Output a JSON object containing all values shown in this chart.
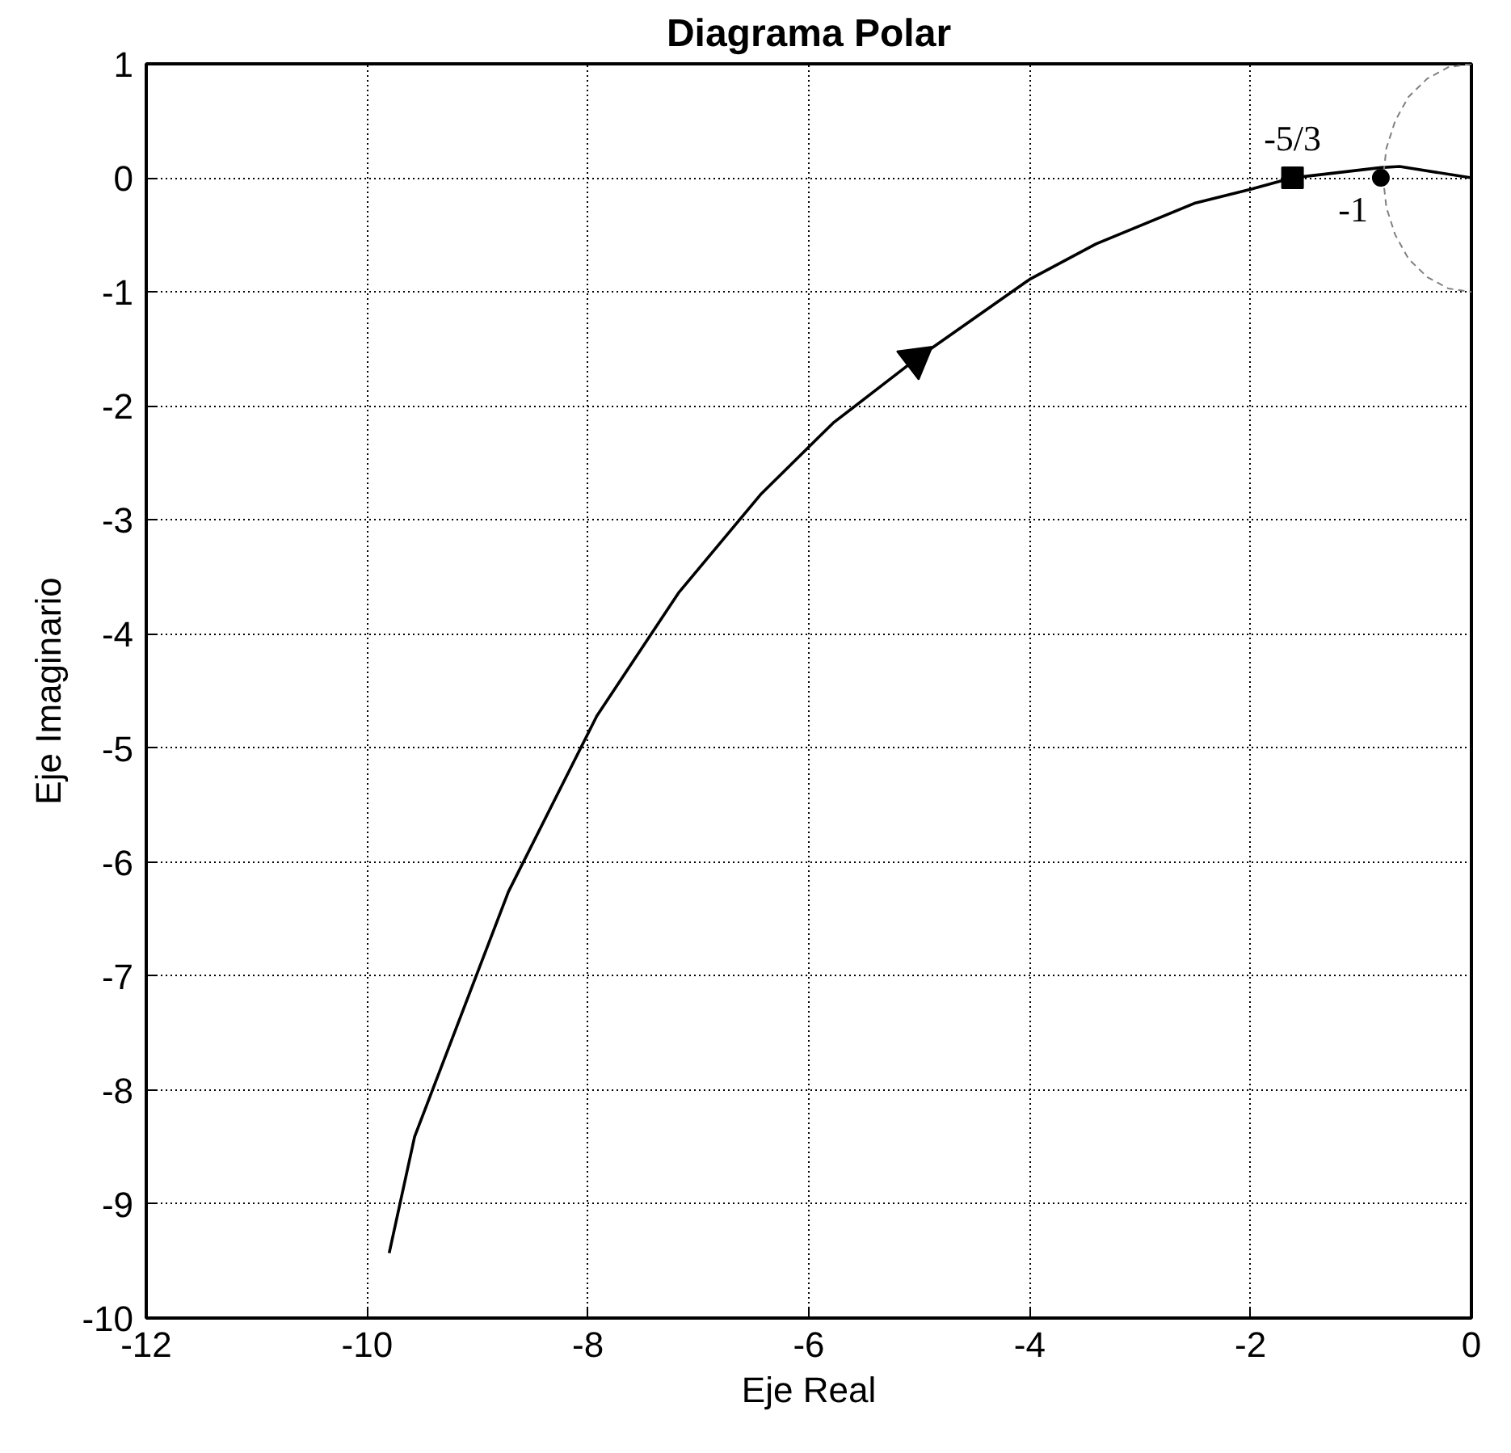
{
  "chart_data": {
    "type": "line",
    "title": "Diagrama Polar",
    "xlabel": "Eje Real",
    "ylabel": "Eje Imaginario",
    "xlim": [
      -12,
      0
    ],
    "ylim": [
      -10,
      1
    ],
    "xticks": [
      -12,
      -10,
      -8,
      -6,
      -4,
      -2,
      0
    ],
    "yticks": [
      -10,
      -9,
      -8,
      -7,
      -6,
      -5,
      -4,
      -3,
      -2,
      -1,
      0,
      1
    ],
    "grid": true,
    "series": [
      {
        "color": "#000000",
        "line_style": "solid",
        "x": [
          -9.8,
          -9.57,
          -8.72,
          -7.92,
          -7.18,
          -6.43,
          -5.78,
          -5.03,
          -4.0,
          -3.4,
          -2.5,
          -2.0,
          -1.62,
          -0.82,
          -0.65,
          0
        ],
        "values": [
          -9.43,
          -8.41,
          -6.26,
          -4.72,
          -3.64,
          -2.77,
          -2.15,
          -1.59,
          -0.89,
          -0.58,
          -0.22,
          -0.1,
          0,
          0.09,
          0.1,
          0
        ]
      },
      {
        "color": "#808080",
        "line_style": "dashed",
        "x": [
          0,
          -0.21,
          -0.4,
          -0.57,
          -0.69,
          -0.77,
          -0.8,
          -0.77,
          -0.69,
          -0.57,
          -0.4,
          -0.21,
          0
        ],
        "values": [
          1,
          0.97,
          0.87,
          0.71,
          0.5,
          0.26,
          0,
          -0.26,
          -0.5,
          -0.71,
          -0.87,
          -0.97,
          -1
        ]
      },
      {
        "type": "scatter",
        "marker": "triangle",
        "color": "#000000",
        "x": [
          -5.03
        ],
        "values": [
          -1.59
        ]
      },
      {
        "type": "scatter",
        "marker": "square",
        "color": "#000000",
        "x": [
          -1.62
        ],
        "values": [
          0
        ]
      },
      {
        "type": "scatter",
        "marker": "circle",
        "color": "#000000",
        "x": [
          -0.82
        ],
        "values": [
          0
        ]
      }
    ],
    "annotations": [
      {
        "text": "-5/3",
        "x": -1.62,
        "y": 0
      },
      {
        "text": "-1",
        "x": -0.82,
        "y": 0
      }
    ]
  }
}
